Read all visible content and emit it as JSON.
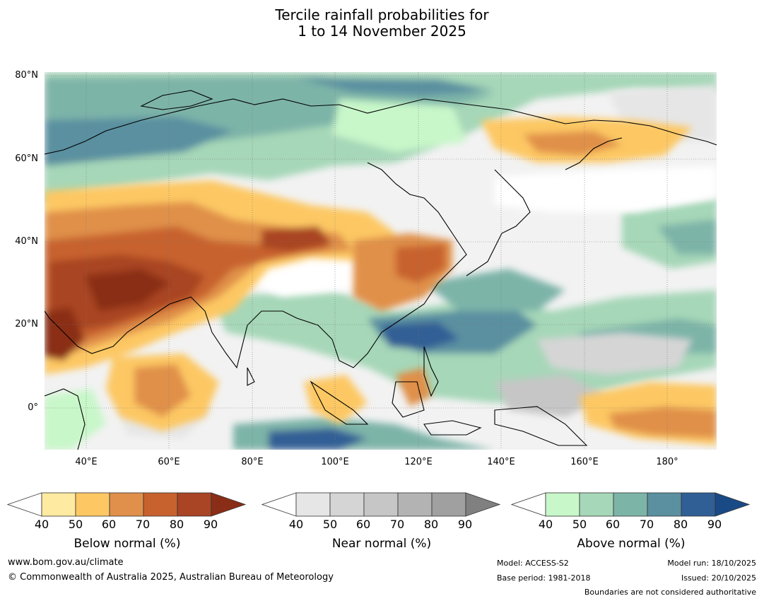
{
  "title": {
    "line1": "Tercile rainfall probabilities for",
    "line2": "1 to 14 November 2025"
  },
  "axes": {
    "lat_labels": [
      "80°N",
      "60°N",
      "40°N",
      "20°N",
      "0°"
    ],
    "lon_labels": [
      "40°E",
      "60°E",
      "80°E",
      "100°E",
      "120°E",
      "140°E",
      "160°E",
      "180°"
    ]
  },
  "legend": {
    "below": {
      "label": "Below normal (%)",
      "ticks": [
        "40",
        "50",
        "60",
        "70",
        "80",
        "90"
      ],
      "colors": [
        "#ffffff",
        "#feeaa0",
        "#fdc863",
        "#e0904a",
        "#c7622f",
        "#a94424",
        "#8a2d16"
      ]
    },
    "near": {
      "label": "Near normal (%)",
      "ticks": [
        "40",
        "50",
        "60",
        "70",
        "80",
        "90"
      ],
      "colors": [
        "#ffffff",
        "#e6e6e6",
        "#d5d5d5",
        "#c6c6c6",
        "#b3b3b3",
        "#a0a0a0",
        "#808080"
      ]
    },
    "above": {
      "label": "Above normal (%)",
      "ticks": [
        "40",
        "50",
        "60",
        "70",
        "80",
        "90"
      ],
      "colors": [
        "#ffffff",
        "#c8f7c9",
        "#a6d7b8",
        "#7db4a8",
        "#5a90a0",
        "#305f95",
        "#1a4a85"
      ]
    }
  },
  "footer": {
    "website": "www.bom.gov.au/climate",
    "copyright": "© Commonwealth of Australia 2025, Australian Bureau of Meteorology",
    "model": "Model: ACCESS-S2",
    "base_period": "Base period: 1981-2018",
    "model_run": "Model run: 18/10/2025",
    "issued": "Issued: 20/10/2025",
    "disclaimer": "Boundaries are not considered authoritative"
  }
}
